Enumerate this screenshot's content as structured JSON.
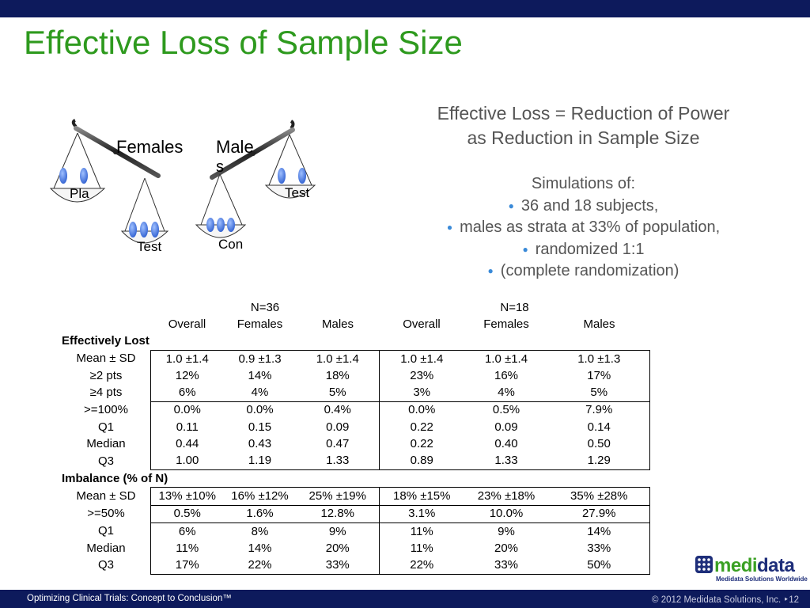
{
  "title": "Effective Loss of Sample Size",
  "effective_loss": {
    "line1": "Effective Loss =  Reduction of Power",
    "line2": "as Reduction in Sample Size"
  },
  "simulations": {
    "heading": "Simulations of:",
    "bullets": [
      "36 and 18 subjects,",
      "males as strata at 33% of population,",
      "randomized 1:1",
      "(complete randomization)"
    ]
  },
  "scales": {
    "females_label": "Females",
    "males_label_1": "Male",
    "males_label_2": "s",
    "females_left_pan": "Pla",
    "females_right_pan": "Test",
    "males_left_pan": "Con",
    "males_right_pan": "Test"
  },
  "table": {
    "group_headers": [
      "N=36",
      "N=18"
    ],
    "column_headers": [
      "Overall",
      "Females",
      "Males",
      "Overall",
      "Females",
      "Males"
    ],
    "sections": [
      {
        "title": "Effectively Lost",
        "rows": [
          {
            "label": "Mean ± SD",
            "values": [
              "1.0 ±1.4",
              "0.9 ±1.3",
              "1.0 ±1.4",
              "1.0 ±1.4",
              "1.0 ±1.4",
              "1.0 ±1.3"
            ]
          },
          {
            "label": "≥2 pts",
            "values": [
              "12%",
              "14%",
              "18%",
              "23%",
              "16%",
              "17%"
            ]
          },
          {
            "label": "≥4 pts",
            "values": [
              "6%",
              "4%",
              "5%",
              "3%",
              "4%",
              "5%"
            ]
          },
          {
            "label": ">=100%",
            "values": [
              "0.0%",
              "0.0%",
              "0.4%",
              "0.0%",
              "0.5%",
              "7.9%"
            ]
          },
          {
            "label": "Q1",
            "values": [
              "0.11",
              "0.15",
              "0.09",
              "0.22",
              "0.09",
              "0.14"
            ]
          },
          {
            "label": "Median",
            "values": [
              "0.44",
              "0.43",
              "0.47",
              "0.22",
              "0.40",
              "0.50"
            ]
          },
          {
            "label": "Q3",
            "values": [
              "1.00",
              "1.19",
              "1.33",
              "0.89",
              "1.33",
              "1.29"
            ]
          }
        ]
      },
      {
        "title": "Imbalance (% of N)",
        "rows": [
          {
            "label": "Mean ± SD",
            "values": [
              "13% ±10%",
              "16% ±12%",
              "25% ±19%",
              "18% ±15%",
              "23% ±18%",
              "35% ±28%"
            ]
          },
          {
            "label": ">=50%",
            "values": [
              "0.5%",
              "1.6%",
              "12.8%",
              "3.1%",
              "10.0%",
              "27.9%"
            ]
          },
          {
            "label": "Q1",
            "values": [
              "6%",
              "8%",
              "9%",
              "11%",
              "9%",
              "14%"
            ]
          },
          {
            "label": "Median",
            "values": [
              "11%",
              "14%",
              "20%",
              "11%",
              "20%",
              "33%"
            ]
          },
          {
            "label": "Q3",
            "values": [
              "17%",
              "22%",
              "33%",
              "22%",
              "33%",
              "50%"
            ]
          }
        ]
      }
    ]
  },
  "logo": {
    "word_part1": "medi",
    "word_part2": "data",
    "tagline": "Medidata Solutions Worldwide"
  },
  "footer": {
    "left": "Optimizing Clinical Trials: Concept to Conclusion™",
    "right": "© 2012 Medidata Solutions, Inc. ‣12"
  },
  "colors": {
    "title_green": "#2e9a1e",
    "bar_navy": "#0d1a5c",
    "body_gray": "#555555",
    "pill_blue": "#3a6fd8",
    "bullet_blue": "#3a8ad8"
  }
}
